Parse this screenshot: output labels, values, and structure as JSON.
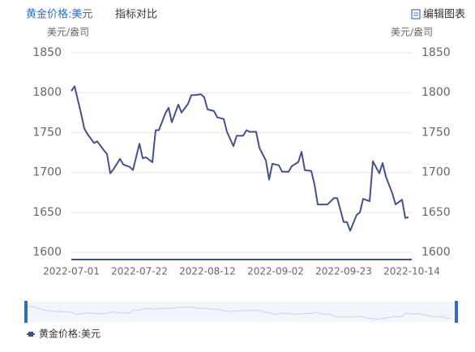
{
  "tabs": [
    "黄金价格:美元",
    "指标对比"
  ],
  "edit_button": "编辑图表",
  "chart_data": {
    "type": "line",
    "y_unit_left": "美元/盎司",
    "y_unit_right": "美元/盎司",
    "x": [
      "2022-07-01",
      "2022-07-02",
      "2022-07-04",
      "2022-07-05",
      "2022-07-06",
      "2022-07-08",
      "2022-07-09",
      "2022-07-11",
      "2022-07-12",
      "2022-07-13",
      "2022-07-14",
      "2022-07-16",
      "2022-07-17",
      "2022-07-19",
      "2022-07-20",
      "2022-07-22",
      "2022-07-23",
      "2022-07-24",
      "2022-07-26",
      "2022-07-27",
      "2022-07-28",
      "2022-07-30",
      "2022-07-31",
      "2022-08-01",
      "2022-08-03",
      "2022-08-04",
      "2022-08-06",
      "2022-08-07",
      "2022-08-08",
      "2022-08-10",
      "2022-08-11",
      "2022-08-12",
      "2022-08-14",
      "2022-08-15",
      "2022-08-17",
      "2022-08-18",
      "2022-08-20",
      "2022-08-21",
      "2022-08-23",
      "2022-08-24",
      "2022-08-25",
      "2022-08-27",
      "2022-08-28",
      "2022-08-30",
      "2022-08-31",
      "2022-09-01",
      "2022-09-03",
      "2022-09-04",
      "2022-09-06",
      "2022-09-07",
      "2022-09-09",
      "2022-09-10",
      "2022-09-11",
      "2022-09-13",
      "2022-09-14",
      "2022-09-15",
      "2022-09-17",
      "2022-09-18",
      "2022-09-20",
      "2022-09-21",
      "2022-09-23",
      "2022-09-24",
      "2022-09-25",
      "2022-09-27",
      "2022-09-28",
      "2022-09-29",
      "2022-10-01",
      "2022-10-02",
      "2022-10-04",
      "2022-10-05",
      "2022-10-06",
      "2022-10-08",
      "2022-10-09",
      "2022-10-11",
      "2022-10-12",
      "2022-10-13"
    ],
    "series": [
      {
        "name": "黄金价格:美元",
        "color": "#44528a",
        "values": [
          1802,
          1808,
          1774,
          1755,
          1748,
          1737,
          1739,
          1728,
          1723,
          1699,
          1704,
          1717,
          1710,
          1707,
          1703,
          1736,
          1718,
          1719,
          1713,
          1753,
          1753,
          1774,
          1781,
          1763,
          1785,
          1775,
          1786,
          1797,
          1797,
          1798,
          1794,
          1779,
          1777,
          1769,
          1767,
          1751,
          1733,
          1746,
          1746,
          1753,
          1751,
          1751,
          1731,
          1715,
          1691,
          1711,
          1709,
          1701,
          1701,
          1708,
          1713,
          1726,
          1703,
          1702,
          1685,
          1660,
          1660,
          1660,
          1668,
          1668,
          1638,
          1638,
          1627,
          1647,
          1650,
          1667,
          1664,
          1714,
          1699,
          1712,
          1695,
          1674,
          1660,
          1666,
          1643,
          1644
        ]
      }
    ],
    "xlim": [
      "2022-07-01",
      "2022-10-14"
    ],
    "xticks": [
      "2022-07-01",
      "2022-07-22",
      "2022-08-12",
      "2022-09-02",
      "2022-09-23",
      "2022-10-14"
    ],
    "ylim": [
      1591,
      1850
    ],
    "yticks": [
      1600,
      1650,
      1700,
      1750,
      1800,
      1850
    ],
    "grid": true
  }
}
